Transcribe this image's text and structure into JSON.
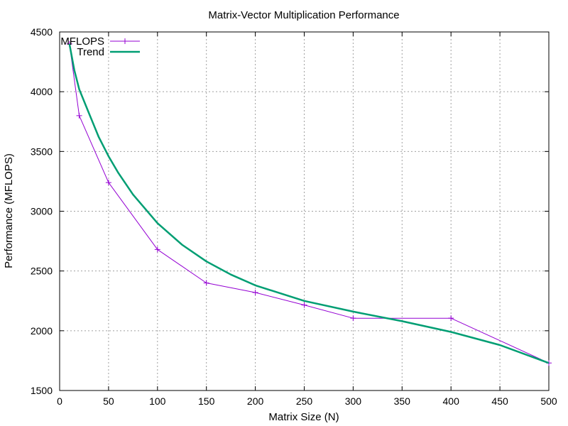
{
  "chart_data": {
    "type": "line",
    "title": "Matrix-Vector Multiplication Performance",
    "xlabel": "Matrix Size (N)",
    "ylabel": "Performance (MFLOPS)",
    "xlim": [
      0,
      500
    ],
    "ylim": [
      1500,
      4500
    ],
    "xticks": [
      0,
      50,
      100,
      150,
      200,
      250,
      300,
      350,
      400,
      450,
      500
    ],
    "yticks": [
      1500,
      2000,
      2500,
      3000,
      3500,
      4000,
      4500
    ],
    "grid": true,
    "legend_position": "top-left",
    "series": [
      {
        "name": "MFLOPS",
        "color": "#9400d3",
        "marker": "plus",
        "x": [
          10,
          20,
          50,
          100,
          150,
          200,
          250,
          300,
          400,
          500
        ],
        "y": [
          4400,
          3800,
          3240,
          2680,
          2400,
          2320,
          2215,
          2105,
          2105,
          1730
        ]
      },
      {
        "name": "Trend",
        "color": "#009e73",
        "marker": "none",
        "x": [
          10,
          15,
          20,
          30,
          40,
          50,
          60,
          75,
          100,
          125,
          150,
          175,
          200,
          250,
          300,
          350,
          400,
          450,
          500
        ],
        "y": [
          4400,
          4180,
          4020,
          3820,
          3620,
          3460,
          3320,
          3140,
          2900,
          2720,
          2580,
          2470,
          2380,
          2250,
          2160,
          2080,
          1990,
          1880,
          1730
        ]
      }
    ]
  }
}
